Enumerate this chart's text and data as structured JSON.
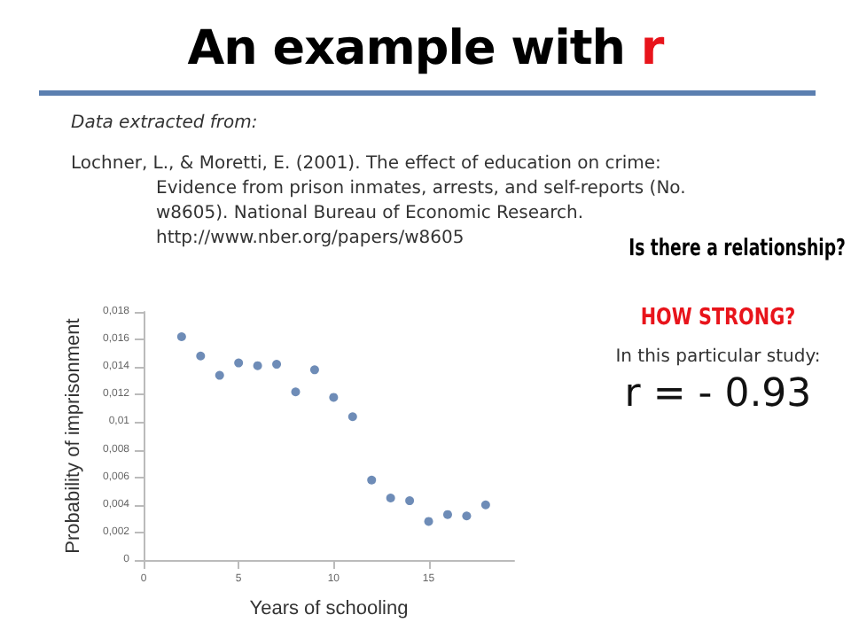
{
  "chart_data": {
    "type": "scatter",
    "title": "An example with r",
    "annotations": [
      "Data extracted from:",
      "Lochner, L., & Moretti, E. (2001). The effect of education on crime: Evidence from prison inmates, arrests, and self-reports (No. w8605). National Bureau of Economic Research. http://www.nber.org/papers/w8605",
      "Is there a relationship?",
      "HOW STRONG?",
      "In this particular study:",
      "r = - 0.93"
    ],
    "xlabel": "Years of schooling",
    "ylabel": "Probability of imprisonment",
    "x": [
      2,
      3,
      4,
      5,
      6,
      7,
      8,
      9,
      10,
      11,
      12,
      13,
      14,
      15,
      16,
      17,
      18
    ],
    "values": [
      0.0162,
      0.0148,
      0.0134,
      0.0143,
      0.0141,
      0.0142,
      0.0122,
      0.0138,
      0.0118,
      0.0104,
      0.0058,
      0.0045,
      0.0043,
      0.0028,
      0.0033,
      0.0032,
      0.004
    ],
    "color": "#4a6fa5",
    "marker": "circle",
    "xlim": [
      0,
      19.5
    ],
    "xticks": [
      0,
      5,
      10,
      15
    ],
    "ylim": [
      0,
      0.018
    ],
    "yticks": [
      {
        "value": 0,
        "label": "0"
      },
      {
        "value": 0.002,
        "label": "0,002"
      },
      {
        "value": 0.004,
        "label": "0,004"
      },
      {
        "value": 0.006,
        "label": "0,006"
      },
      {
        "value": 0.008,
        "label": "0,008"
      },
      {
        "value": 0.01,
        "label": "0,01"
      },
      {
        "value": 0.012,
        "label": "0,012"
      },
      {
        "value": 0.014,
        "label": "0,014"
      },
      {
        "value": 0.016,
        "label": "0,016"
      },
      {
        "value": 0.018,
        "label": "0,018"
      }
    ],
    "grid": false
  }
}
